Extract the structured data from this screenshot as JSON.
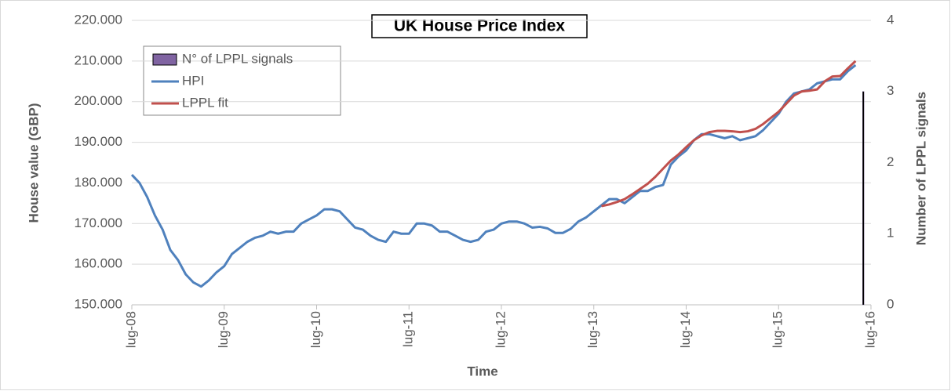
{
  "chart_data": {
    "type": "line",
    "title": "UK House Price Index",
    "x_label": "Time",
    "y_label": "House value (GBP)",
    "y2_label": "Number of LPPL signals",
    "categories": [
      "lug-08",
      null,
      null,
      null,
      null,
      null,
      null,
      null,
      null,
      null,
      null,
      null,
      "lug-09",
      null,
      null,
      null,
      null,
      null,
      null,
      null,
      null,
      null,
      null,
      null,
      "lug-10",
      null,
      null,
      null,
      null,
      null,
      null,
      null,
      null,
      null,
      null,
      null,
      "lug-11",
      null,
      null,
      null,
      null,
      null,
      null,
      null,
      null,
      null,
      null,
      null,
      "lug-12",
      null,
      null,
      null,
      null,
      null,
      null,
      null,
      null,
      null,
      null,
      null,
      "lug-13",
      null,
      null,
      null,
      null,
      null,
      null,
      null,
      null,
      null,
      null,
      null,
      "lug-14",
      null,
      null,
      null,
      null,
      null,
      null,
      null,
      null,
      null,
      null,
      null,
      "lug-15",
      null,
      null,
      null,
      null,
      null,
      null,
      null,
      null,
      null,
      null,
      null,
      "lug-16"
    ],
    "series": [
      {
        "name": "N° of LPPL signals",
        "type": "bar",
        "axis": "y2",
        "color": "#8064a2",
        "values": [
          null,
          null,
          null,
          null,
          null,
          null,
          null,
          null,
          null,
          null,
          null,
          null,
          null,
          null,
          null,
          null,
          null,
          null,
          null,
          null,
          null,
          null,
          null,
          null,
          null,
          null,
          null,
          null,
          null,
          null,
          null,
          null,
          null,
          null,
          null,
          null,
          null,
          null,
          null,
          null,
          null,
          null,
          null,
          null,
          null,
          null,
          null,
          null,
          null,
          null,
          null,
          null,
          null,
          null,
          null,
          null,
          null,
          null,
          null,
          null,
          null,
          null,
          null,
          null,
          null,
          null,
          null,
          null,
          null,
          null,
          null,
          null,
          null,
          null,
          null,
          null,
          null,
          null,
          null,
          null,
          null,
          null,
          null,
          null,
          null,
          null,
          null,
          null,
          null,
          null,
          null,
          null,
          null,
          null,
          null,
          3,
          null
        ]
      },
      {
        "name": "HPI",
        "type": "line",
        "color": "#4f81bd",
        "values": [
          182000,
          180000,
          176500,
          172000,
          168500,
          163500,
          161000,
          157500,
          155500,
          154500,
          156000,
          158000,
          159500,
          162500,
          164000,
          165500,
          166500,
          167000,
          168000,
          167500,
          168000,
          168000,
          170000,
          171000,
          172000,
          173500,
          173500,
          173000,
          171000,
          169000,
          168500,
          167000,
          166000,
          165500,
          168000,
          167500,
          167500,
          170000,
          170000,
          169500,
          168000,
          168000,
          167000,
          166000,
          165500,
          166000,
          168000,
          168500,
          170000,
          170500,
          170500,
          170000,
          169000,
          169200,
          168800,
          167700,
          167700,
          168700,
          170500,
          171500,
          173000,
          174500,
          176000,
          176000,
          175000,
          176500,
          178000,
          178000,
          179000,
          179500,
          184500,
          186500,
          188000,
          190500,
          192000,
          192000,
          191500,
          191000,
          191500,
          190500,
          191000,
          191500,
          193000,
          195000,
          197000,
          200000,
          202000,
          202500,
          203000,
          204500,
          205000,
          205500,
          205500,
          207500,
          209000,
          null,
          null
        ]
      },
      {
        "name": "LPPL fit",
        "type": "line",
        "color": "#c0504d",
        "values": [
          null,
          null,
          null,
          null,
          null,
          null,
          null,
          null,
          null,
          null,
          null,
          null,
          null,
          null,
          null,
          null,
          null,
          null,
          null,
          null,
          null,
          null,
          null,
          null,
          null,
          null,
          null,
          null,
          null,
          null,
          null,
          null,
          null,
          null,
          null,
          null,
          null,
          null,
          null,
          null,
          null,
          null,
          null,
          null,
          null,
          null,
          null,
          null,
          null,
          null,
          null,
          null,
          null,
          null,
          null,
          null,
          null,
          null,
          null,
          null,
          null,
          174300,
          174700,
          175300,
          176000,
          177200,
          178500,
          179800,
          181500,
          183500,
          185500,
          187000,
          188800,
          190500,
          191700,
          192500,
          192800,
          192800,
          192700,
          192500,
          192700,
          193300,
          194500,
          196000,
          197500,
          199500,
          201500,
          202500,
          202700,
          203000,
          205000,
          206200,
          206300,
          208200,
          210000,
          null,
          null
        ]
      }
    ],
    "ylim": [
      150000,
      220000
    ],
    "yticks": [
      {
        "value": 150000,
        "label": "150.000"
      },
      {
        "value": 160000,
        "label": "160.000"
      },
      {
        "value": 170000,
        "label": "170.000"
      },
      {
        "value": 180000,
        "label": "180.000"
      },
      {
        "value": 190000,
        "label": "190.000"
      },
      {
        "value": 200000,
        "label": "200.000"
      },
      {
        "value": 210000,
        "label": "210.000"
      },
      {
        "value": 220000,
        "label": "220.000"
      }
    ],
    "y2lim": [
      0,
      4
    ],
    "y2ticks": [
      0,
      1,
      2,
      3,
      4
    ],
    "grid": true,
    "legend": "upper left"
  }
}
